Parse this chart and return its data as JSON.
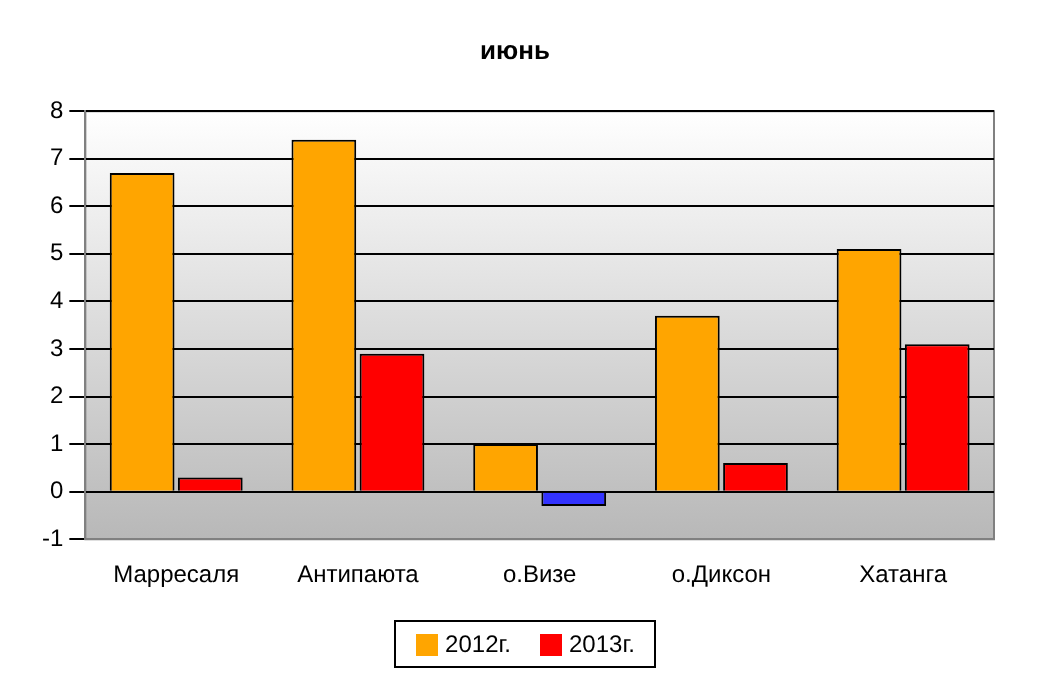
{
  "chart_data": {
    "type": "bar",
    "title": "июнь",
    "categories": [
      "Марресаля",
      "Антипаюта",
      "о.Визе",
      "о.Диксон",
      "Хатанга"
    ],
    "series": [
      {
        "name": "2012г.",
        "color": "#ffa500",
        "values": [
          6.7,
          7.4,
          1.0,
          3.7,
          5.1
        ]
      },
      {
        "name": "2013г.",
        "color": "#ff0000",
        "colors": [
          "#ff0000",
          "#ff0000",
          "#3333ff",
          "#ff0000",
          "#ff0000"
        ],
        "values": [
          0.3,
          2.9,
          -0.3,
          0.6,
          3.1
        ]
      }
    ],
    "ylim": [
      -1,
      8
    ],
    "yticks": [
      -1,
      0,
      1,
      2,
      3,
      4,
      5,
      6,
      7,
      8
    ],
    "grid": "y",
    "legend": "bottom"
  }
}
